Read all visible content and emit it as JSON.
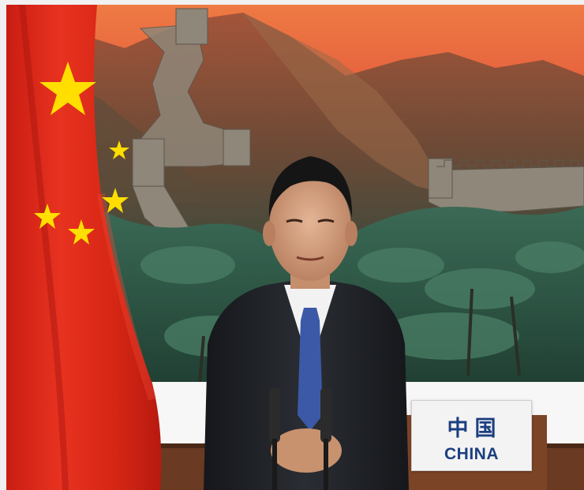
{
  "nameplate": {
    "chinese_text": "中国",
    "english_text": "CHINA",
    "text_color": "#1b3f80"
  },
  "scene": {
    "backdrop": "great-wall-painting",
    "flag": "flag-of-china",
    "speaker": "seated-speaker-dark-suit-blue-tie",
    "microphones": 2
  },
  "colors": {
    "sky": "#e9673a",
    "mountain": "#8a4c30",
    "forest": "#2f5a46",
    "flag_red": "#de2910",
    "flag_star": "#ffde00",
    "suit": "#1d1f23",
    "tie": "#3b59a6",
    "panel": "#f7f7f7",
    "frame": "#f1f1f1"
  }
}
